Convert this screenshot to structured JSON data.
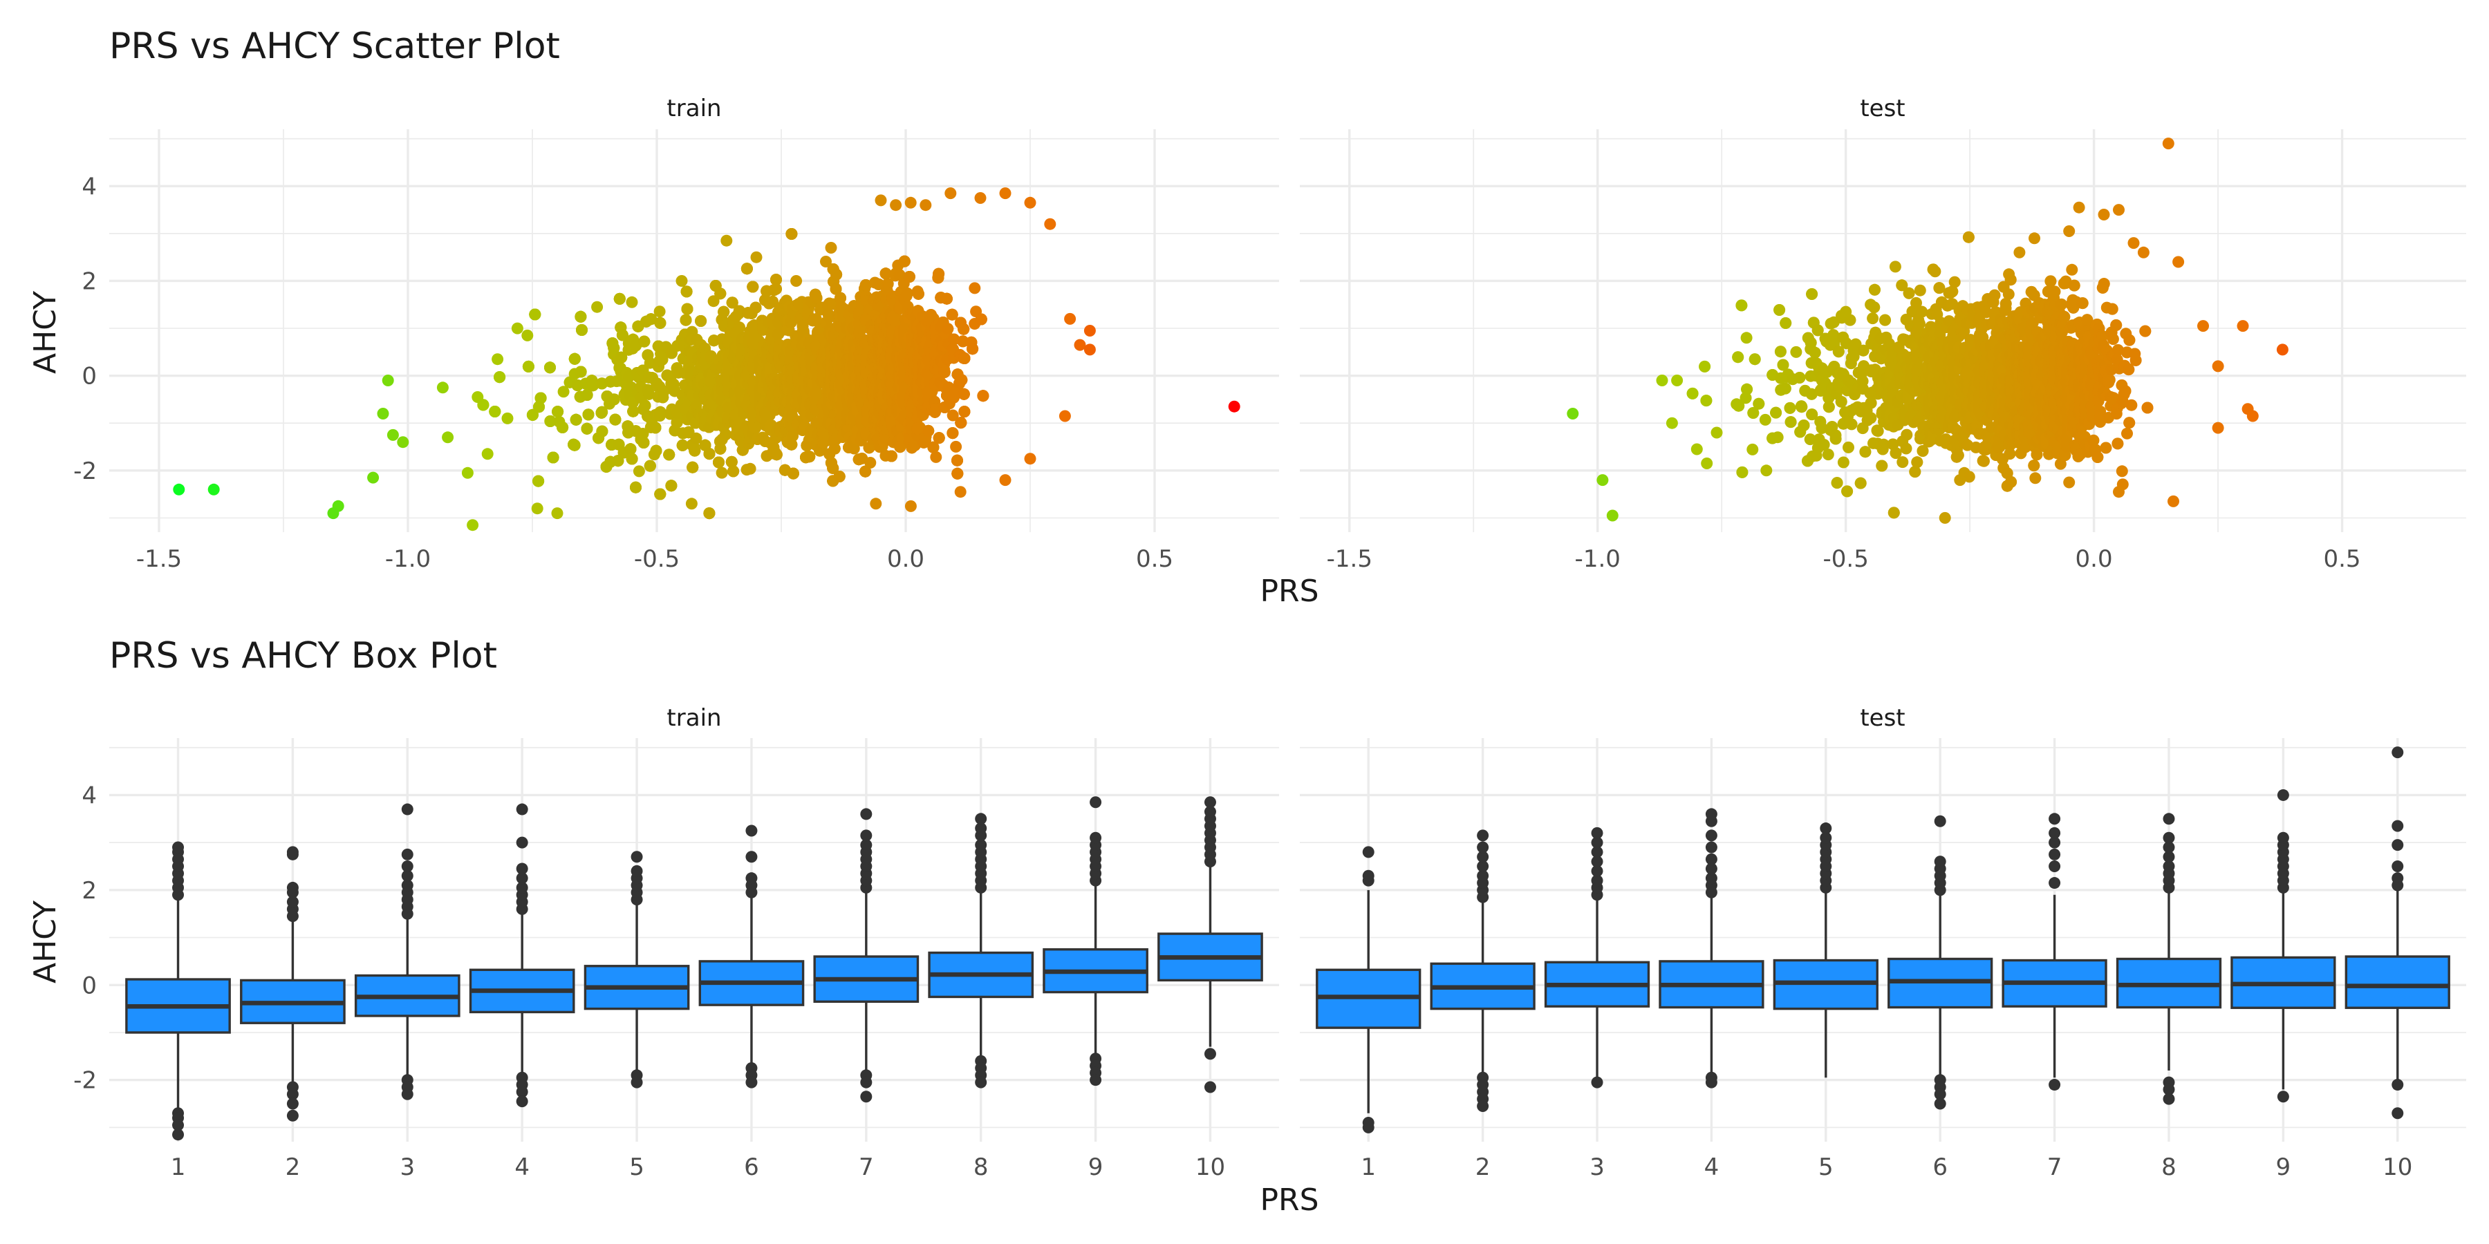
{
  "chart_data": [
    {
      "type": "scatter",
      "title": "PRS vs AHCY Scatter Plot",
      "xlabel": "PRS",
      "ylabel": "AHCY",
      "facets": [
        "train",
        "test"
      ],
      "xlim": [
        -1.6,
        0.75
      ],
      "ylim": [
        -3.3,
        5.2
      ],
      "x_ticks": [
        "-1.5",
        "-1.0",
        "-0.5",
        "0.0",
        "0.5"
      ],
      "y_ticks": [
        "-2",
        "0",
        "2",
        "4"
      ],
      "grid": true,
      "legend": "none",
      "color_scale": {
        "low": "#00ff22",
        "mid": "#aacc00",
        "high": "#ff0000"
      },
      "series": [
        {
          "facet": "train",
          "n_points_approx": 9000,
          "points": [
            [
              -1.46,
              -2.4
            ],
            [
              -1.39,
              -2.4
            ],
            [
              -1.14,
              -2.75
            ],
            [
              -1.15,
              -2.9
            ],
            [
              -1.07,
              -2.15
            ],
            [
              -1.04,
              -0.1
            ],
            [
              -1.05,
              -0.8
            ],
            [
              -1.03,
              -1.25
            ],
            [
              -1.01,
              -1.4
            ],
            [
              -0.87,
              -3.15
            ],
            [
              -0.93,
              -0.25
            ],
            [
              -0.92,
              -1.3
            ],
            [
              -0.88,
              -2.05
            ],
            [
              -0.86,
              -0.45
            ],
            [
              -0.84,
              -1.65
            ],
            [
              -0.82,
              0.35
            ],
            [
              -0.8,
              -0.9
            ],
            [
              -0.78,
              1.0
            ],
            [
              -0.76,
              0.85
            ],
            [
              -0.74,
              -2.8
            ],
            [
              -0.7,
              -2.9
            ],
            [
              -0.62,
              1.45
            ],
            [
              -0.55,
              1.55
            ],
            [
              -0.45,
              2.0
            ],
            [
              -0.43,
              -2.7
            ],
            [
              -0.36,
              2.85
            ],
            [
              -0.3,
              2.5
            ],
            [
              -0.22,
              2.0
            ],
            [
              -0.15,
              2.7
            ],
            [
              -0.06,
              -2.7
            ],
            [
              -0.05,
              3.7
            ],
            [
              -0.02,
              3.6
            ],
            [
              0.01,
              3.65
            ],
            [
              0.04,
              3.6
            ],
            [
              0.09,
              3.85
            ],
            [
              0.15,
              3.75
            ],
            [
              0.2,
              3.85
            ],
            [
              0.25,
              3.65
            ],
            [
              0.29,
              3.2
            ],
            [
              0.25,
              -1.75
            ],
            [
              0.32,
              -0.85
            ],
            [
              0.33,
              1.2
            ],
            [
              0.35,
              0.65
            ],
            [
              0.37,
              0.95
            ],
            [
              0.37,
              0.55
            ],
            [
              0.11,
              -2.45
            ],
            [
              0.2,
              -2.2
            ],
            [
              0.66,
              -0.65
            ]
          ]
        },
        {
          "facet": "test",
          "n_points_approx": 3000,
          "points": [
            [
              -1.05,
              -0.8
            ],
            [
              -0.99,
              -2.2
            ],
            [
              -0.97,
              -2.95
            ],
            [
              -0.87,
              -0.1
            ],
            [
              -0.85,
              -1.0
            ],
            [
              -0.84,
              -0.1
            ],
            [
              -0.8,
              -1.55
            ],
            [
              -0.78,
              -1.85
            ],
            [
              -0.76,
              -1.2
            ],
            [
              -0.72,
              -0.6
            ],
            [
              -0.7,
              0.8
            ],
            [
              -0.66,
              -2.0
            ],
            [
              -0.6,
              0.5
            ],
            [
              -0.53,
              1.1
            ],
            [
              -0.5,
              1.35
            ],
            [
              -0.45,
              1.5
            ],
            [
              -0.4,
              2.3
            ],
            [
              -0.35,
              1.8
            ],
            [
              -0.32,
              2.2
            ],
            [
              -0.3,
              -3.0
            ],
            [
              -0.27,
              -2.2
            ],
            [
              -0.2,
              1.7
            ],
            [
              -0.15,
              2.6
            ],
            [
              -0.12,
              2.9
            ],
            [
              -0.05,
              3.05
            ],
            [
              -0.03,
              3.55
            ],
            [
              0.02,
              3.4
            ],
            [
              0.05,
              3.5
            ],
            [
              0.08,
              2.8
            ],
            [
              0.1,
              2.6
            ],
            [
              0.15,
              4.9
            ],
            [
              0.17,
              2.4
            ],
            [
              0.22,
              1.05
            ],
            [
              0.25,
              0.2
            ],
            [
              0.25,
              -1.1
            ],
            [
              0.3,
              1.05
            ],
            [
              0.31,
              -0.7
            ],
            [
              0.32,
              -0.85
            ],
            [
              0.38,
              0.55
            ],
            [
              0.16,
              -2.65
            ],
            [
              0.05,
              -2.45
            ],
            [
              -0.05,
              -2.25
            ]
          ]
        }
      ]
    },
    {
      "type": "box",
      "title": "PRS vs AHCY Box Plot",
      "xlabel": "PRS",
      "ylabel": "AHCY",
      "facets": [
        "train",
        "test"
      ],
      "categories": [
        "1",
        "2",
        "3",
        "4",
        "5",
        "6",
        "7",
        "8",
        "9",
        "10"
      ],
      "ylim": [
        -3.3,
        5.2
      ],
      "y_ticks": [
        "-2",
        "0",
        "2",
        "4"
      ],
      "grid": true,
      "fill_color": "#1e90ff",
      "series": [
        {
          "facet": "train",
          "boxes": [
            {
              "q1": -1.0,
              "median": -0.45,
              "q3": 0.12,
              "whisker_low": -2.6,
              "whisker_high": 1.8,
              "outliers": [
                -2.7,
                -2.8,
                -2.95,
                -3.15,
                1.9,
                2.05,
                2.2,
                2.35,
                2.5,
                2.65,
                2.8,
                2.9
              ]
            },
            {
              "q1": -0.8,
              "median": -0.38,
              "q3": 0.1,
              "whisker_low": -2.05,
              "whisker_high": 1.35,
              "outliers": [
                -2.15,
                -2.3,
                -2.5,
                -2.75,
                1.45,
                1.6,
                1.75,
                1.95,
                2.05,
                2.75,
                2.8
              ]
            },
            {
              "q1": -0.65,
              "median": -0.25,
              "q3": 0.2,
              "whisker_low": -1.9,
              "whisker_high": 1.45,
              "outliers": [
                -2.0,
                -2.15,
                -2.3,
                1.5,
                1.65,
                1.8,
                1.95,
                2.1,
                2.3,
                2.5,
                2.75,
                3.7
              ]
            },
            {
              "q1": -0.57,
              "median": -0.12,
              "q3": 0.32,
              "whisker_low": -1.85,
              "whisker_high": 1.55,
              "outliers": [
                -1.95,
                -2.1,
                -2.25,
                -2.45,
                1.6,
                1.75,
                1.9,
                2.05,
                2.25,
                2.45,
                3.0,
                3.7
              ]
            },
            {
              "q1": -0.5,
              "median": -0.05,
              "q3": 0.4,
              "whisker_low": -1.8,
              "whisker_high": 1.7,
              "outliers": [
                -1.9,
                -2.05,
                1.8,
                1.95,
                2.1,
                2.25,
                2.4,
                2.7
              ]
            },
            {
              "q1": -0.42,
              "median": 0.05,
              "q3": 0.5,
              "whisker_low": -1.65,
              "whisker_high": 1.85,
              "outliers": [
                -1.75,
                -1.9,
                -2.05,
                1.95,
                2.1,
                2.25,
                2.7,
                3.25
              ]
            },
            {
              "q1": -0.35,
              "median": 0.12,
              "q3": 0.6,
              "whisker_low": -1.8,
              "whisker_high": 1.95,
              "outliers": [
                -1.9,
                -2.05,
                -2.35,
                2.05,
                2.2,
                2.35,
                2.5,
                2.65,
                2.8,
                2.95,
                3.15,
                3.6
              ]
            },
            {
              "q1": -0.25,
              "median": 0.22,
              "q3": 0.68,
              "whisker_low": -1.5,
              "whisker_high": 1.95,
              "outliers": [
                -1.6,
                -1.75,
                -1.9,
                -2.05,
                2.05,
                2.2,
                2.35,
                2.5,
                2.65,
                2.8,
                2.95,
                3.15,
                3.3,
                3.5
              ]
            },
            {
              "q1": -0.15,
              "median": 0.28,
              "q3": 0.75,
              "whisker_low": -1.45,
              "whisker_high": 2.1,
              "outliers": [
                -1.55,
                -1.7,
                -1.85,
                -2.0,
                2.2,
                2.35,
                2.5,
                2.65,
                2.8,
                2.95,
                3.1,
                3.85
              ]
            },
            {
              "q1": 0.1,
              "median": 0.58,
              "q3": 1.08,
              "whisker_low": -1.3,
              "whisker_high": 2.5,
              "outliers": [
                -1.45,
                -2.15,
                2.6,
                2.75,
                2.9,
                3.05,
                3.2,
                3.35,
                3.5,
                3.65,
                3.85
              ]
            }
          ]
        },
        {
          "facet": "test",
          "boxes": [
            {
              "q1": -0.9,
              "median": -0.25,
              "q3": 0.32,
              "whisker_low": -2.7,
              "whisker_high": 2.0,
              "outliers": [
                -2.9,
                -3.0,
                2.2,
                2.3,
                2.8
              ]
            },
            {
              "q1": -0.5,
              "median": -0.05,
              "q3": 0.45,
              "whisker_low": -1.85,
              "whisker_high": 1.75,
              "outliers": [
                -1.95,
                -2.1,
                -2.25,
                -2.4,
                -2.55,
                1.85,
                2.0,
                2.15,
                2.3,
                2.5,
                2.7,
                2.9,
                3.15
              ]
            },
            {
              "q1": -0.45,
              "median": 0.0,
              "q3": 0.48,
              "whisker_low": -1.95,
              "whisker_high": 1.8,
              "outliers": [
                -2.05,
                1.9,
                2.05,
                2.2,
                2.4,
                2.6,
                2.8,
                3.0,
                3.2
              ]
            },
            {
              "q1": -0.47,
              "median": 0.0,
              "q3": 0.5,
              "whisker_low": -1.85,
              "whisker_high": 1.85,
              "outliers": [
                -1.95,
                -2.05,
                1.95,
                2.1,
                2.25,
                2.45,
                2.65,
                2.9,
                3.15,
                3.45,
                3.6
              ]
            },
            {
              "q1": -0.5,
              "median": 0.05,
              "q3": 0.52,
              "whisker_low": -1.95,
              "whisker_high": 1.95,
              "outliers": [
                2.05,
                2.2,
                2.35,
                2.5,
                2.65,
                2.8,
                2.95,
                3.1,
                3.3
              ]
            },
            {
              "q1": -0.47,
              "median": 0.08,
              "q3": 0.55,
              "whisker_low": -1.9,
              "whisker_high": 1.9,
              "outliers": [
                -2.0,
                -2.15,
                -2.3,
                -2.5,
                2.0,
                2.15,
                2.3,
                2.45,
                2.6,
                3.45
              ]
            },
            {
              "q1": -0.45,
              "median": 0.05,
              "q3": 0.52,
              "whisker_low": -1.95,
              "whisker_high": 1.9,
              "outliers": [
                -2.1,
                2.15,
                2.5,
                2.75,
                3.0,
                3.2,
                3.5
              ]
            },
            {
              "q1": -0.47,
              "median": 0.0,
              "q3": 0.55,
              "whisker_low": -1.8,
              "whisker_high": 1.95,
              "outliers": [
                -2.05,
                -2.2,
                -2.4,
                2.05,
                2.2,
                2.35,
                2.5,
                2.7,
                2.9,
                3.1,
                3.5
              ]
            },
            {
              "q1": -0.48,
              "median": 0.02,
              "q3": 0.58,
              "whisker_low": -2.2,
              "whisker_high": 1.95,
              "outliers": [
                -2.35,
                2.05,
                2.2,
                2.35,
                2.5,
                2.65,
                2.8,
                2.95,
                3.1,
                4.0
              ]
            },
            {
              "q1": -0.48,
              "median": -0.02,
              "q3": 0.6,
              "whisker_low": -2.0,
              "whisker_high": 2.0,
              "outliers": [
                -2.1,
                -2.7,
                2.1,
                2.25,
                2.5,
                2.95,
                3.35,
                4.9
              ]
            }
          ]
        }
      ]
    }
  ]
}
